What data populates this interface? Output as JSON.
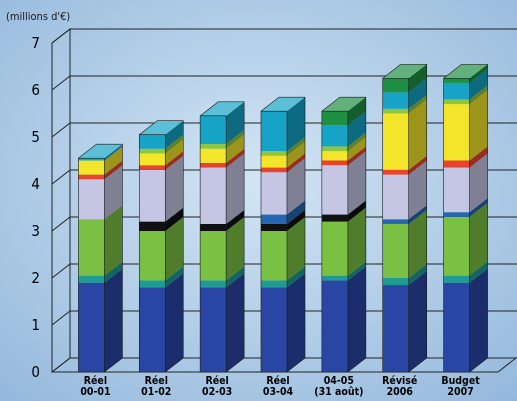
{
  "chart_data": {
    "type": "bar",
    "stacked": true,
    "three_d": true,
    "unit_label": "(millions d'€)",
    "ylim": [
      0,
      7
    ],
    "yticks": [
      "0",
      "1",
      "2",
      "3",
      "4",
      "5",
      "6",
      "7"
    ],
    "grid": true,
    "categories": [
      [
        "Réel",
        "00-01"
      ],
      [
        "Réel",
        "01-02"
      ],
      [
        "Réel",
        "02-03"
      ],
      [
        "Réel",
        "03-04"
      ],
      [
        "04-05",
        "(31 août)"
      ],
      [
        "Révisé",
        "2006"
      ],
      [
        "Budget",
        "2007"
      ]
    ],
    "series": [
      {
        "color": "#2a46a4",
        "values": [
          1.9,
          1.8,
          1.8,
          1.8,
          1.95,
          1.85,
          1.9
        ]
      },
      {
        "color": "#1f9b93",
        "values": [
          0.15,
          0.15,
          0.15,
          0.15,
          0.1,
          0.15,
          0.15
        ]
      },
      {
        "color": "#7ac143",
        "values": [
          1.2,
          1.05,
          1.05,
          1.05,
          1.15,
          1.15,
          1.25
        ]
      },
      {
        "color": "#111111",
        "values": [
          0.0,
          0.2,
          0.15,
          0.15,
          0.15,
          0.0,
          0.0
        ]
      },
      {
        "color": "#2467b0",
        "values": [
          0.0,
          0.0,
          0.0,
          0.2,
          0.0,
          0.1,
          0.1
        ]
      },
      {
        "color": "#c5c5e4",
        "values": [
          0.85,
          1.1,
          1.2,
          0.9,
          1.05,
          0.95,
          0.95
        ]
      },
      {
        "color": "#e8432f",
        "values": [
          0.1,
          0.1,
          0.1,
          0.1,
          0.1,
          0.1,
          0.15
        ]
      },
      {
        "color": "#f2e52a",
        "values": [
          0.3,
          0.25,
          0.3,
          0.25,
          0.2,
          1.2,
          1.2
        ]
      },
      {
        "color": "#8fc63f",
        "values": [
          0.0,
          0.1,
          0.1,
          0.1,
          0.1,
          0.1,
          0.1
        ]
      },
      {
        "color": "#16a3c6",
        "values": [
          0.05,
          0.3,
          0.6,
          0.85,
          0.45,
          0.35,
          0.35
        ]
      },
      {
        "color": "#1f8f44",
        "values": [
          0.0,
          0.0,
          0.0,
          0.0,
          0.3,
          0.3,
          0.1
        ]
      }
    ]
  }
}
